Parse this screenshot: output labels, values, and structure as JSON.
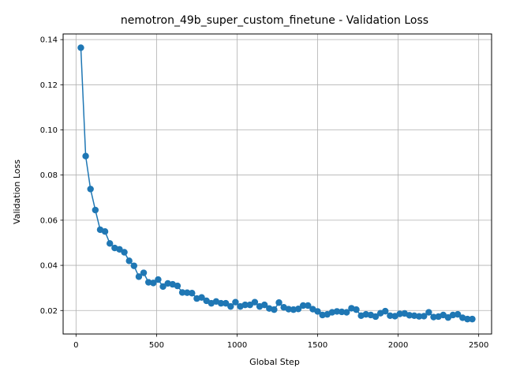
{
  "chart_data": {
    "type": "line",
    "title": "nemotron_49b_super_custom_finetune - Validation Loss",
    "xlabel": "Global Step",
    "ylabel": "Validation Loss",
    "xlim": [
      -80,
      2580
    ],
    "ylim": [
      0.0096,
      0.1425
    ],
    "xticks": [
      0,
      500,
      1000,
      1500,
      2000,
      2500
    ],
    "yticks": [
      0.02,
      0.04,
      0.06,
      0.08,
      0.1,
      0.12,
      0.14
    ],
    "ytick_labels": [
      "0.02",
      "0.04",
      "0.06",
      "0.08",
      "0.10",
      "0.12",
      "0.14"
    ],
    "grid": true,
    "series": [
      {
        "color": "#1f77b4",
        "marker": "circle",
        "x": [
          30,
          60,
          90,
          120,
          150,
          180,
          210,
          240,
          270,
          300,
          330,
          360,
          390,
          420,
          450,
          480,
          510,
          540,
          570,
          600,
          630,
          660,
          690,
          720,
          750,
          780,
          810,
          840,
          870,
          900,
          930,
          960,
          990,
          1020,
          1050,
          1080,
          1110,
          1140,
          1170,
          1200,
          1230,
          1260,
          1290,
          1320,
          1350,
          1380,
          1410,
          1440,
          1470,
          1500,
          1530,
          1560,
          1590,
          1620,
          1650,
          1680,
          1710,
          1740,
          1770,
          1800,
          1830,
          1860,
          1890,
          1920,
          1950,
          1980,
          2010,
          2040,
          2070,
          2100,
          2130,
          2160,
          2190,
          2220,
          2250,
          2280,
          2310,
          2340,
          2370,
          2400,
          2430,
          2460
        ],
        "y": [
          0.1364,
          0.0884,
          0.0738,
          0.0645,
          0.0558,
          0.055,
          0.0497,
          0.0477,
          0.0471,
          0.0458,
          0.042,
          0.0398,
          0.035,
          0.0367,
          0.0325,
          0.0322,
          0.0337,
          0.0306,
          0.032,
          0.0316,
          0.0309,
          0.028,
          0.0279,
          0.0277,
          0.0253,
          0.0258,
          0.0243,
          0.0232,
          0.024,
          0.0232,
          0.0232,
          0.0218,
          0.0237,
          0.0218,
          0.0225,
          0.0225,
          0.0237,
          0.0218,
          0.0225,
          0.0209,
          0.0204,
          0.0235,
          0.0214,
          0.0206,
          0.0204,
          0.0207,
          0.0222,
          0.0222,
          0.0206,
          0.0196,
          0.018,
          0.0183,
          0.0192,
          0.0196,
          0.0194,
          0.0192,
          0.021,
          0.0204,
          0.0177,
          0.0183,
          0.018,
          0.0173,
          0.0188,
          0.0197,
          0.0177,
          0.0175,
          0.0185,
          0.0187,
          0.0179,
          0.0177,
          0.0174,
          0.0175,
          0.0192,
          0.0171,
          0.0173,
          0.018,
          0.0169,
          0.018,
          0.0183,
          0.0168,
          0.0162,
          0.0162
        ]
      }
    ]
  }
}
